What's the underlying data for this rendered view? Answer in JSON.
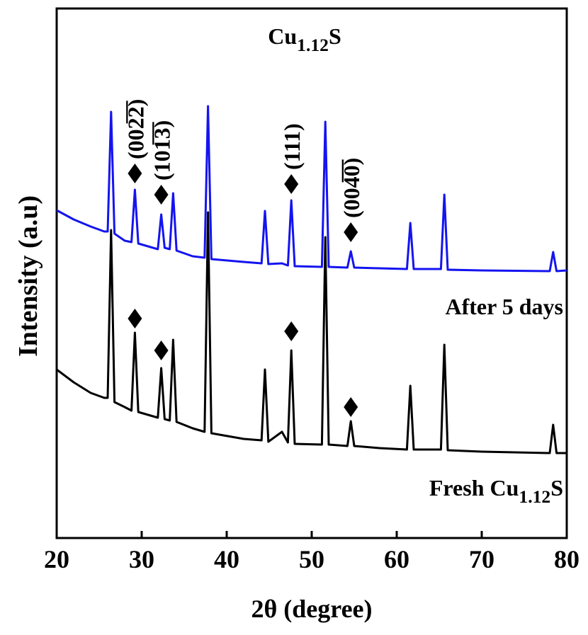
{
  "chart_data": {
    "type": "line",
    "title_parts": [
      "Cu",
      "1.12",
      "S"
    ],
    "xlabel": "2θ (degree)",
    "ylabel": "Intensity (a.u)",
    "xlim": [
      20,
      80
    ],
    "xticks": [
      20,
      30,
      40,
      50,
      60,
      70,
      80
    ],
    "ylim": [
      0,
      748
    ],
    "x": [
      20,
      22,
      24,
      25.6,
      26.0,
      26.4,
      26.8,
      28,
      28.8,
      29.2,
      29.6,
      31.9,
      32.3,
      32.7,
      33.3,
      33.7,
      34.1,
      36,
      37.4,
      37.8,
      38.2,
      42,
      44.1,
      44.5,
      44.9,
      46.5,
      47.2,
      47.6,
      48.0,
      51.2,
      51.6,
      52.0,
      54.2,
      54.6,
      55.0,
      58,
      61.2,
      61.6,
      62.0,
      65.2,
      65.6,
      66.0,
      70,
      78.0,
      78.4,
      78.8,
      80
    ],
    "series": [
      {
        "label_parts": [
          "After 5 days"
        ],
        "color": "#1414f0",
        "values": [
          463,
          450,
          440,
          433,
          433,
          602,
          430,
          420,
          418,
          492,
          416,
          408,
          457,
          410,
          408,
          487,
          406,
          398,
          396,
          610,
          394,
          390,
          388,
          462,
          387,
          388,
          385,
          477,
          384,
          383,
          588,
          383,
          382,
          405,
          382,
          381,
          380,
          445,
          380,
          380,
          485,
          379,
          378,
          377,
          404,
          377,
          378
        ],
        "diamonds": [
          515,
          485,
          500,
          432
        ]
      },
      {
        "label_parts": [
          "Fresh Cu",
          "1.12",
          "S"
        ],
        "color": "#000000",
        "values": [
          238,
          220,
          205,
          198,
          198,
          435,
          192,
          185,
          180,
          290,
          178,
          170,
          240,
          168,
          166,
          280,
          164,
          155,
          150,
          460,
          148,
          140,
          138,
          238,
          136,
          150,
          135,
          265,
          133,
          132,
          425,
          132,
          130,
          165,
          130,
          127,
          125,
          215,
          125,
          125,
          273,
          124,
          122,
          120,
          160,
          120,
          120
        ],
        "diamonds": [
          310,
          265,
          292,
          185
        ]
      }
    ],
    "diamond_x": [
      29.2,
      32.3,
      47.6,
      54.6
    ],
    "peak_labels": [
      "(002̅2̅)",
      "(101̅3̅)",
      "(111)",
      "(004̅0̅)"
    ]
  }
}
